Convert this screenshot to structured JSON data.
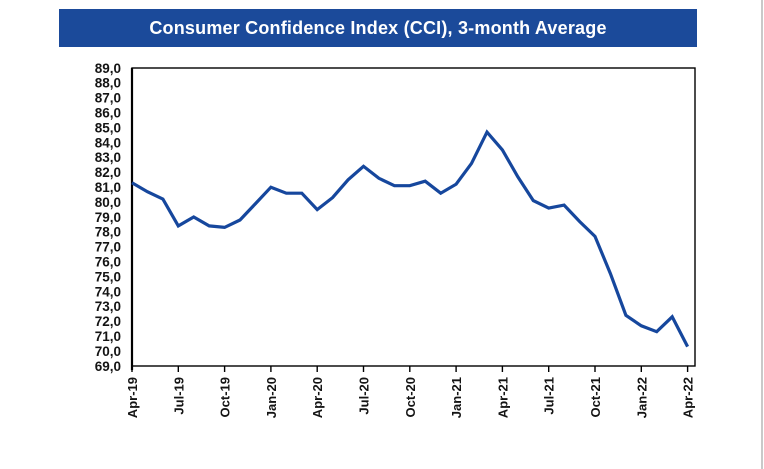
{
  "header": {
    "title": "Consumer Confidence Index (CCI), 3-month Average",
    "bg_color": "#1b4a9a",
    "text_color": "#ffffff"
  },
  "chart_data": {
    "type": "line",
    "title": "Consumer Confidence Index (CCI), 3-month Average",
    "x": [
      "Apr-19",
      "May-19",
      "Jun-19",
      "Jul-19",
      "Aug-19",
      "Sep-19",
      "Oct-19",
      "Nov-19",
      "Dec-19",
      "Jan-20",
      "Feb-20",
      "Mar-20",
      "Apr-20",
      "May-20",
      "Jun-20",
      "Jul-20",
      "Aug-20",
      "Sep-20",
      "Oct-20",
      "Nov-20",
      "Dec-20",
      "Jan-21",
      "Feb-21",
      "Mar-21",
      "Apr-21",
      "May-21",
      "Jun-21",
      "Jul-21",
      "Aug-21",
      "Sep-21",
      "Oct-21",
      "Nov-21",
      "Dec-21",
      "Jan-22",
      "Feb-22",
      "Mar-22",
      "Apr-22"
    ],
    "values": [
      81.3,
      80.7,
      80.2,
      78.4,
      79.0,
      78.4,
      78.3,
      78.8,
      79.9,
      81.0,
      80.6,
      80.6,
      79.5,
      80.3,
      81.5,
      82.4,
      81.6,
      81.1,
      81.1,
      81.4,
      80.6,
      81.2,
      82.6,
      84.7,
      83.5,
      81.7,
      80.1,
      79.6,
      79.8,
      78.7,
      77.7,
      75.2,
      72.4,
      71.7,
      71.3,
      72.3,
      70.3
    ],
    "x_tick_labels": [
      "Apr-19",
      "Jul-19",
      "Oct-19",
      "Jan-20",
      "Apr-20",
      "Jul-20",
      "Oct-20",
      "Jan-21",
      "Apr-21",
      "Jul-21",
      "Oct-21",
      "Jan-22",
      "Apr-22"
    ],
    "ylim": [
      69.0,
      89.0
    ],
    "ytick_step": 1.0,
    "decimal_separator": ",",
    "grid": false,
    "legend": "none",
    "line_color": "#16479d",
    "axis_color": "#000000",
    "tick_label_color": "#141414"
  }
}
